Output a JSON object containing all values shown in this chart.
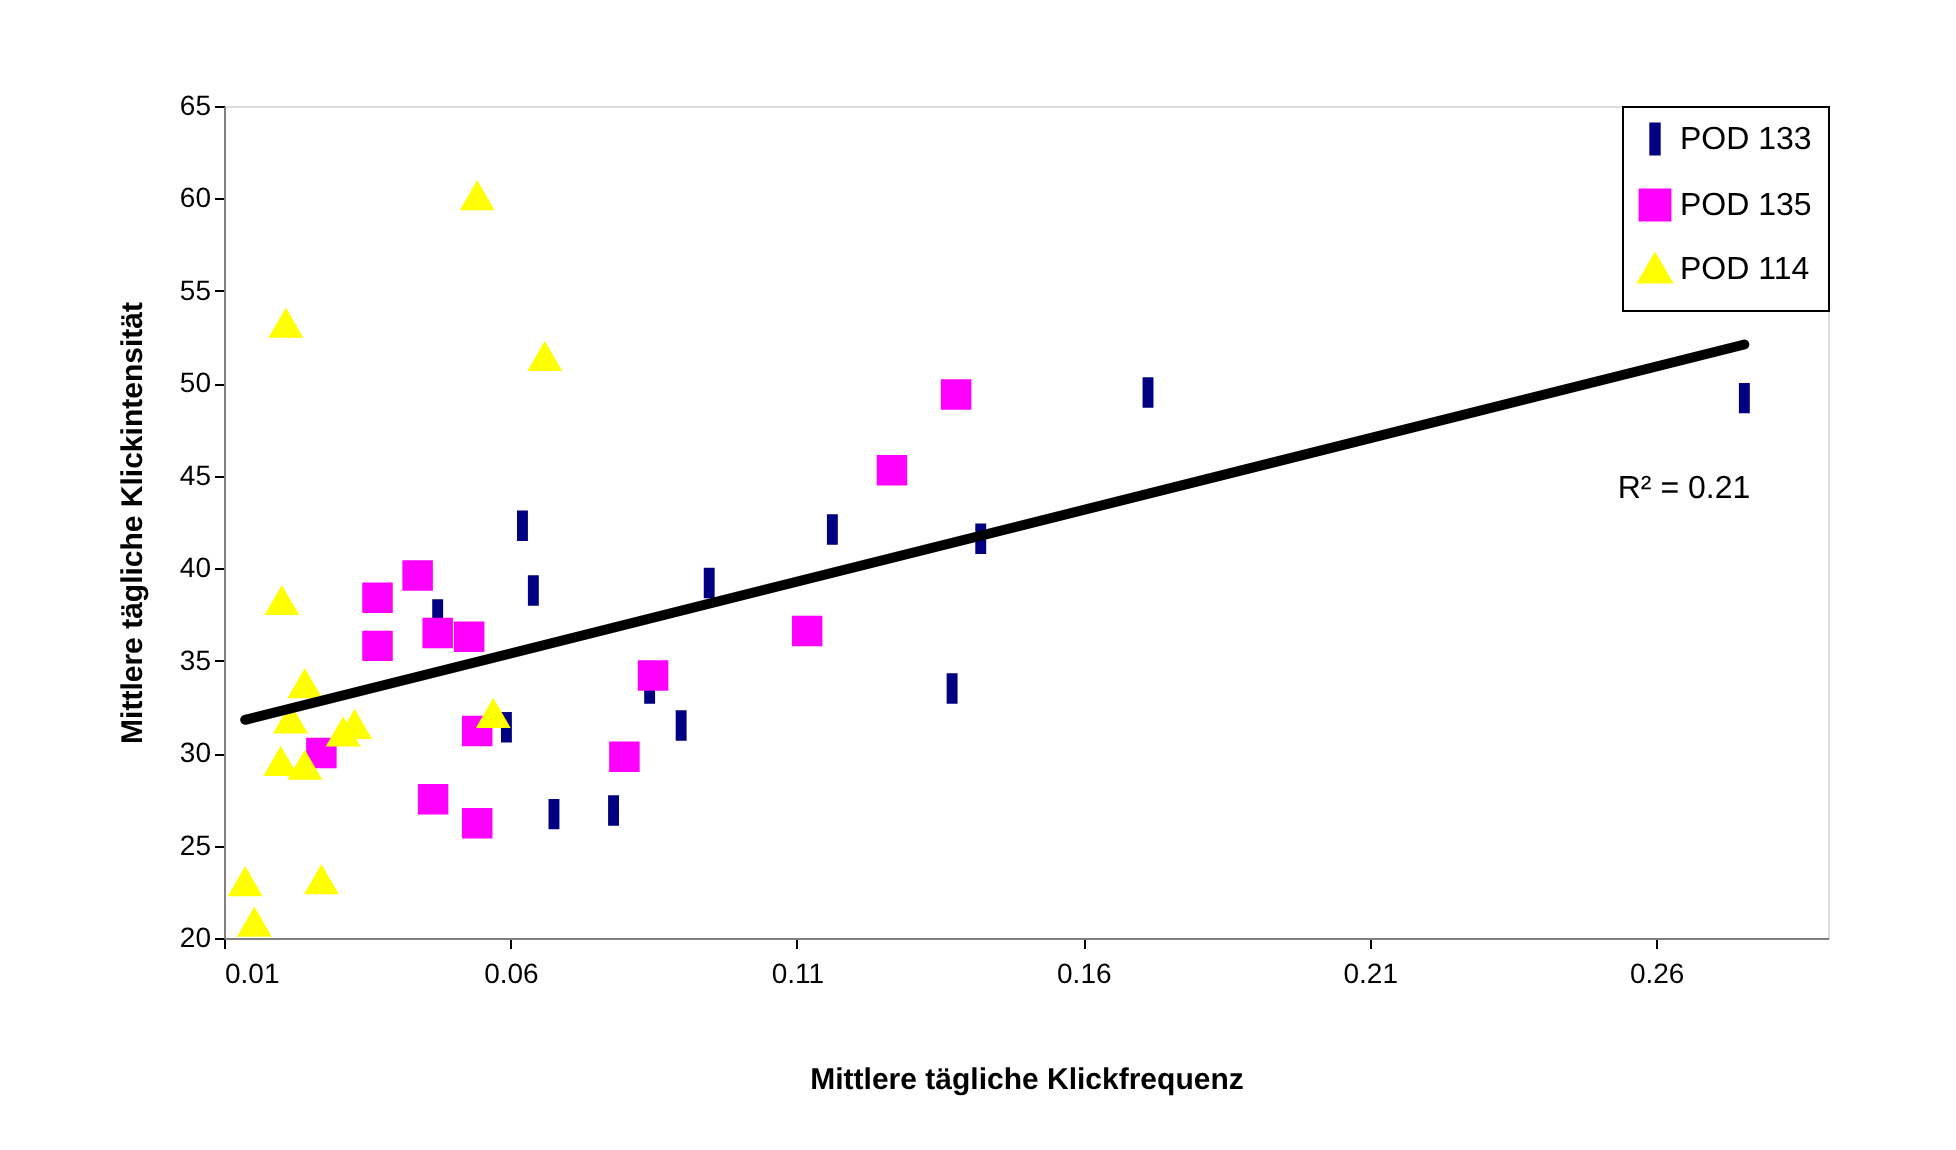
{
  "chart_data": {
    "type": "scatter",
    "xlabel": "Mittlere tägliche Klickfrequenz",
    "ylabel": "Mittlere tägliche Klickintensität",
    "xlim": [
      0.01,
      0.29
    ],
    "xticks": [
      0.01,
      0.06,
      0.11,
      0.16,
      0.21,
      0.26
    ],
    "ylim": [
      20,
      65
    ],
    "yticks": [
      20,
      25,
      30,
      35,
      40,
      45,
      50,
      55,
      60,
      65
    ],
    "grid": false,
    "legend": "top right",
    "annotations": [
      "R² = 0.21"
    ],
    "series": [
      {
        "name": "POD 133",
        "color": "#000080",
        "x": [
          0.0621,
          0.064,
          0.0473,
          0.0593,
          0.0676,
          0.078,
          0.0843,
          0.0898,
          0.0947,
          0.1162,
          0.1421,
          0.1371,
          0.1713,
          0.2754
        ],
        "values": [
          42.3,
          38.8,
          37.5,
          31.4,
          26.7,
          26.9,
          33.5,
          31.5,
          39.2,
          42.1,
          41.6,
          33.5,
          49.5,
          49.2
        ]
      },
      {
        "name": "POD 135",
        "color": "#ff00ff",
        "marker": "square",
        "x": [
          0.027,
          0.0368,
          0.0368,
          0.0438,
          0.0473,
          0.0528,
          0.0542,
          0.0465,
          0.0542,
          0.0799,
          0.0849,
          0.1118,
          0.1266,
          0.1378
        ],
        "values": [
          30.0,
          38.4,
          35.8,
          39.6,
          36.5,
          36.3,
          31.2,
          27.5,
          26.2,
          29.8,
          34.2,
          36.6,
          45.3,
          49.4
        ]
      },
      {
        "name": "POD 114",
        "color": "#ffff00",
        "marker": "triangle",
        "x": [
          0.0542,
          0.0208,
          0.066,
          0.0201,
          0.0241,
          0.0216,
          0.0328,
          0.0308,
          0.057,
          0.0199,
          0.0241,
          0.0137,
          0.027,
          0.0153
        ],
        "values": [
          60.1,
          53.2,
          51.4,
          38.2,
          33.7,
          31.8,
          31.5,
          31.1,
          32.1,
          29.5,
          29.3,
          23.0,
          23.1,
          20.8
        ]
      },
      {
        "type": "line",
        "color": "#000000",
        "x": [
          0.0137,
          0.2754
        ],
        "values": [
          31.8,
          52.1
        ]
      }
    ]
  }
}
